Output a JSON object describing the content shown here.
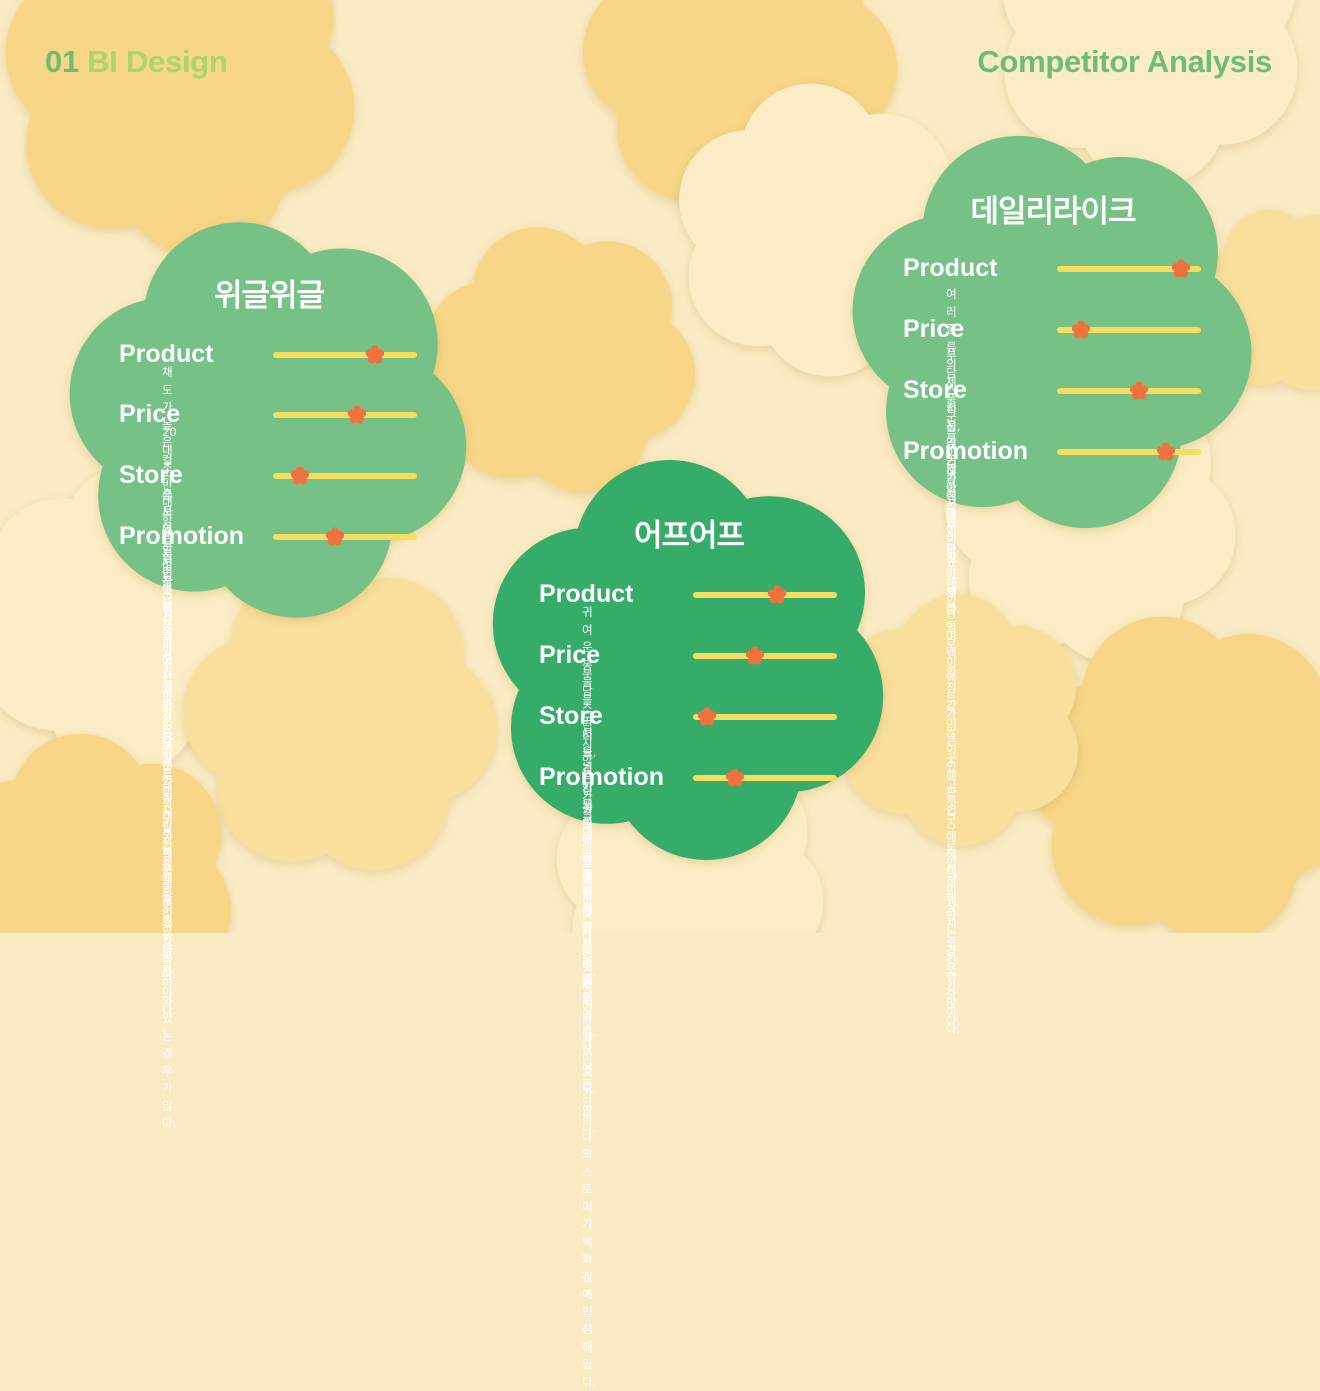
{
  "header": {
    "left_number": "01",
    "left_title": "BI Design",
    "right_title": "Competitor Analysis"
  },
  "colors": {
    "background": "#fbebc4",
    "cloud_light": "#fcedc6",
    "cloud_mid": "#f9df9c",
    "cloud_dark": "#f7d687",
    "card_green_light": "#74c186",
    "card_green_dark": "#35ac67",
    "slider_track": "#f7de63",
    "slider_marker": "#ef7140"
  },
  "cards": [
    {
      "title": "위글위글",
      "sections": [
        {
          "label": "Product",
          "level": 0.71,
          "desc": "채도가 높은 컬러를 사용하여 장난스럽고\n기발한 스타일로 디자인한 제품들이 많다."
        },
        {
          "label": "Price",
          "level": 0.58,
          "desc": "20대 초반 대학생들이 구매하기에는 부담스러운\n가격대의 제품들이 꽤 있는 편이다."
        },
        {
          "label": "Store",
          "level": 0.19,
          "desc": "스토어는 서울 근처에 있고 대부분은 핫트랙스\n같은 곳에 팝업으로 들어와 있는 경우가 많다."
        },
        {
          "label": "Promotion",
          "level": 0.43,
          "desc": "시즌별로 프로모션이 있으며 세일을 주로 하는\n이벤트가 많다."
        }
      ]
    },
    {
      "title": "어프어프",
      "sections": [
        {
          "label": "Product",
          "level": 0.58,
          "desc": "귀여운 동물을 모티브로한 캐릭터를 활용해\n만든 제품이 많다."
        },
        {
          "label": "Price",
          "level": 0.43,
          "desc": "부담스럽지않은 가격대의 폰케이스나 버즈,\n에어팟 케이스가 많다."
        },
        {
          "label": "Store",
          "level": 0.1,
          "desc": "서울, 경기도쪽에 스토어가 분포해있으며 부산에\n는 단 하나의 스토어가 백화점에 입점해있다."
        },
        {
          "label": "Promotion",
          "level": 0.29,
          "desc": "신상출시 이벤트나 할인 이벤트가 자주있다."
        }
      ]
    },
    {
      "title": "데일리라이크",
      "sections": [
        {
          "label": "Product",
          "level": 0.86,
          "desc": "여러 종류의 제품군들이 많아서 선택지가 많다."
        },
        {
          "label": "Price",
          "level": 0.17,
          "desc": "부담스럽지않은 가격대이다."
        },
        {
          "label": "Store",
          "level": 0.57,
          "desc": "서울,경기쪽에 많이 분포해있으며 백화점같이\n큰 곳에 팝업으로 입점해있는 경우가 많다."
        },
        {
          "label": "Promotion",
          "level": 0.76,
          "desc": "제품군들이 많아 제품별로 이벤트가 많이 있고\n첫 구매 혜택이 상시로 진행중이다."
        }
      ]
    }
  ]
}
